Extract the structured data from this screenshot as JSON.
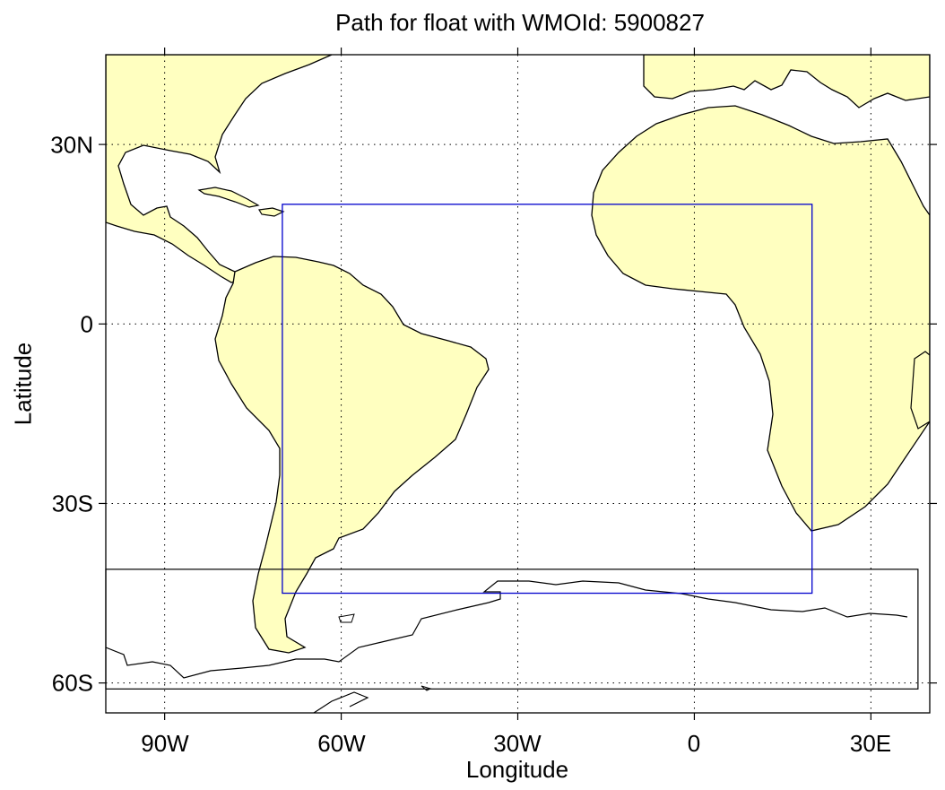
{
  "figure": {
    "title": "Path for float with WMOId: 5900827",
    "xlabel": "Longitude",
    "ylabel": "Latitude"
  },
  "map": {
    "type": "map",
    "projection": "equirectangular",
    "lon_range": [
      -100,
      40
    ],
    "lat_range": [
      -65,
      45
    ],
    "grid": "dotted",
    "xticks": [
      {
        "value": -90,
        "label": "90W"
      },
      {
        "value": -60,
        "label": "60W"
      },
      {
        "value": -30,
        "label": "30W"
      },
      {
        "value": 0,
        "label": "0"
      },
      {
        "value": 30,
        "label": "30E"
      }
    ],
    "yticks": [
      {
        "value": 30,
        "label": "30N"
      },
      {
        "value": 0,
        "label": "0"
      },
      {
        "value": -30,
        "label": "30S"
      },
      {
        "value": -60,
        "label": "60S"
      }
    ],
    "colors": {
      "land": "#ffffc0",
      "coast": "#000000",
      "region_box": "#0000cc",
      "ice_box": "#000000"
    },
    "region_box": {
      "lon_min": -70,
      "lon_max": 20,
      "lat_min": -45,
      "lat_max": 20
    },
    "southern_box": {
      "lon_min": -100,
      "lon_max": 38,
      "lat_min": -61,
      "lat_max": -41
    }
  }
}
